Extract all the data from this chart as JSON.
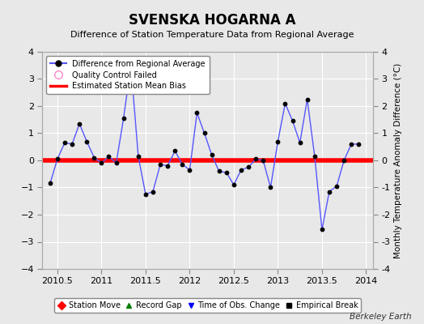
{
  "title": "SVENSKA HOGARNA A",
  "subtitle": "Difference of Station Temperature Data from Regional Average",
  "ylabel_right": "Monthly Temperature Anomaly Difference (°C)",
  "watermark": "Berkeley Earth",
  "xlim": [
    2010.33,
    2014.08
  ],
  "ylim": [
    -4,
    4
  ],
  "yticks": [
    -4,
    -3,
    -2,
    -1,
    0,
    1,
    2,
    3,
    4
  ],
  "xticks": [
    2010.5,
    2011.0,
    2011.5,
    2012.0,
    2012.5,
    2013.0,
    2013.5,
    2014.0
  ],
  "xticklabels": [
    "2010.5",
    "2011",
    "2011.5",
    "2012",
    "2012.5",
    "2013",
    "2013.5",
    "2014"
  ],
  "background_color": "#e8e8e8",
  "plot_bg_color": "#e8e8e8",
  "grid_color": "#ffffff",
  "line_color": "#5555ff",
  "marker_color": "#000000",
  "bias_color": "#ff0000",
  "bias_value": 0.0,
  "x_data": [
    2010.417,
    2010.5,
    2010.583,
    2010.667,
    2010.75,
    2010.833,
    2010.917,
    2011.0,
    2011.083,
    2011.167,
    2011.25,
    2011.333,
    2011.417,
    2011.5,
    2011.583,
    2011.667,
    2011.75,
    2011.833,
    2011.917,
    2012.0,
    2012.083,
    2012.167,
    2012.25,
    2012.333,
    2012.417,
    2012.5,
    2012.583,
    2012.667,
    2012.75,
    2012.833,
    2012.917,
    2013.0,
    2013.083,
    2013.167,
    2013.25,
    2013.333,
    2013.417,
    2013.5,
    2013.583,
    2013.667,
    2013.75,
    2013.833,
    2013.917
  ],
  "y_data": [
    -0.85,
    0.05,
    0.65,
    0.6,
    1.35,
    0.7,
    0.1,
    -0.1,
    0.15,
    -0.1,
    1.55,
    3.5,
    0.15,
    -1.25,
    -1.15,
    -0.15,
    -0.2,
    0.35,
    -0.15,
    -0.35,
    1.75,
    1.0,
    0.2,
    -0.4,
    -0.45,
    -0.9,
    -0.35,
    -0.25,
    0.05,
    0.0,
    -1.0,
    0.7,
    2.1,
    1.45,
    0.65,
    2.25,
    0.15,
    -2.55,
    -1.15,
    -0.95,
    0.0,
    0.6,
    0.6
  ]
}
